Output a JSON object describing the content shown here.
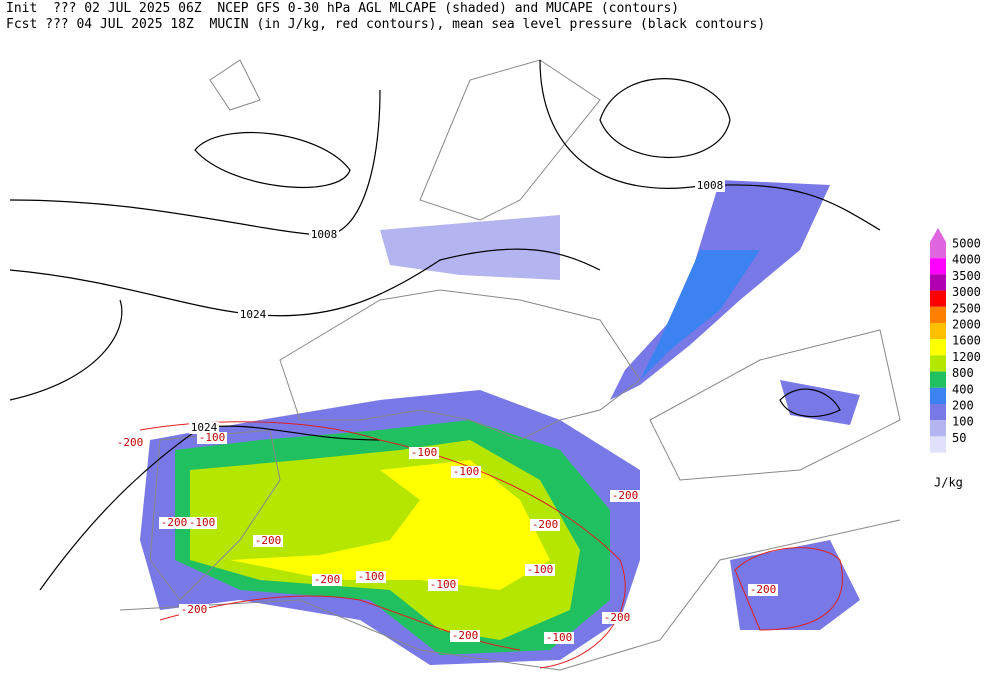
{
  "header": {
    "line1": "Init  ??? 02 JUL 2025 06Z  NCEP GFS 0-30 hPa AGL MLCAPE (shaded) and MUCAPE (contours)",
    "line2": "Fcst ??? 04 JUL 2025 18Z  MUCIN (in J/kg, red contours), mean sea level pressure (black contours)"
  },
  "colorbar": {
    "unit": "J/kg",
    "levels": [
      {
        "label": "5000",
        "color": "#e066e0"
      },
      {
        "label": "4000",
        "color": "#ff00ff"
      },
      {
        "label": "3500",
        "color": "#b000b0"
      },
      {
        "label": "3000",
        "color": "#ff0000"
      },
      {
        "label": "2500",
        "color": "#ff8000"
      },
      {
        "label": "2000",
        "color": "#ffc000"
      },
      {
        "label": "1600",
        "color": "#ffff00"
      },
      {
        "label": "1200",
        "color": "#b4e600"
      },
      {
        "label": "800",
        "color": "#20c060"
      },
      {
        "label": "400",
        "color": "#3c82f0"
      },
      {
        "label": "200",
        "color": "#7878e6"
      },
      {
        "label": "100",
        "color": "#b4b4f0"
      },
      {
        "label": "50",
        "color": "#e0e0fa"
      }
    ]
  },
  "isobar_labels": [
    "1008",
    "1008",
    "1024",
    "1024"
  ],
  "cin_labels": [
    "-200",
    "-100",
    "-100",
    "-100",
    "-200",
    "-100",
    "-200",
    "-200",
    "-200",
    "-100",
    "-100",
    "-100",
    "-200",
    "-200",
    "-100",
    "-200",
    "-200",
    "-200"
  ]
}
